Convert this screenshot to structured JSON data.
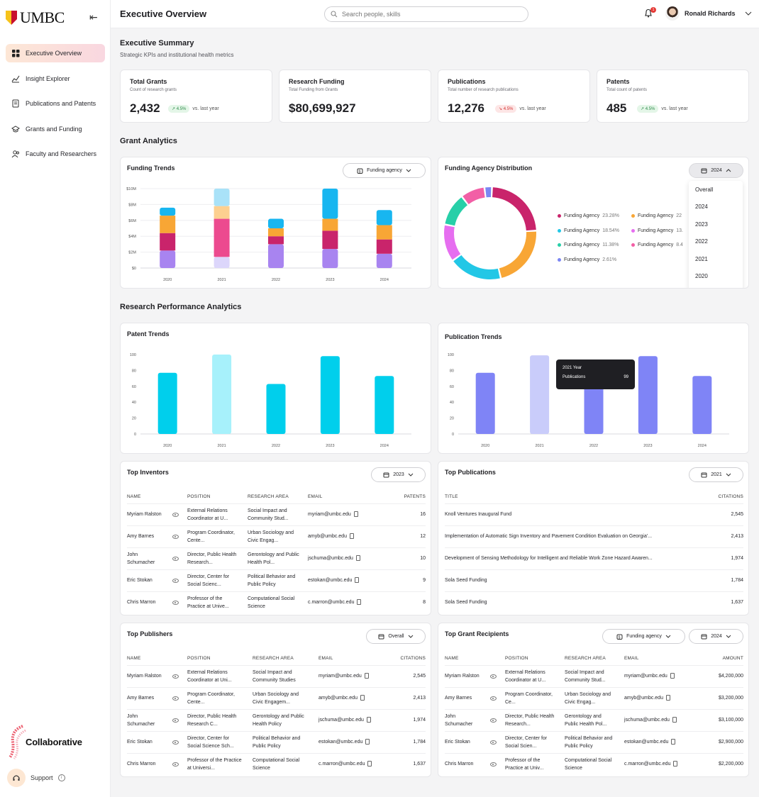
{
  "brand": {
    "logo_text": "UMBC",
    "partner": "Collaborative"
  },
  "sidebar": {
    "items": [
      {
        "label": "Executive Overview",
        "icon": "grid-icon",
        "active": true
      },
      {
        "label": "Insight Explorer",
        "icon": "chart-explore-icon"
      },
      {
        "label": "Publications and Patents",
        "icon": "document-icon"
      },
      {
        "label": "Grants and Funding",
        "icon": "graduation-cap-icon"
      },
      {
        "label": "Faculty and Researchers",
        "icon": "users-icon"
      }
    ],
    "support": "Support"
  },
  "header": {
    "title": "Executive Overview",
    "search_placeholder": "Search people, skills",
    "notifications": "1",
    "user_name": "Ronald Richards"
  },
  "summary": {
    "title": "Executive Summary",
    "subtitle": "Strategic KPIs and institutional health metrics"
  },
  "kpis": [
    {
      "title": "Total Grants",
      "desc": "Count of research grants",
      "value": "2,432",
      "change": "4.5%",
      "dir": "up",
      "suffix": "vs. last year"
    },
    {
      "title": "Research Funding",
      "desc": "Total Funding from Grants",
      "value": "$80,699,927",
      "change": "",
      "dir": "",
      "suffix": ""
    },
    {
      "title": "Publications",
      "desc": "Total number of research publications",
      "value": "12,276",
      "change": "4.5%",
      "dir": "down",
      "suffix": "vs. last year"
    },
    {
      "title": "Patents",
      "desc": "Total count of patents",
      "value": "485",
      "change": "4.5%",
      "dir": "up",
      "suffix": "vs. last year"
    }
  ],
  "grant_analytics": {
    "title": "Grant Analytics"
  },
  "funding_trends": {
    "title": "Funding Trends",
    "filter": "Funding agency"
  },
  "distribution": {
    "title": "Funding Agency Distribution",
    "filter": "2024",
    "menu": [
      "Overall",
      "2024",
      "2023",
      "2022",
      "2021",
      "2020"
    ],
    "legend": [
      {
        "name": "Funding Agency",
        "pct": "23.28%",
        "color": "#c9246b"
      },
      {
        "name": "Funding Agency",
        "pct": "22",
        "color": "#f8a635"
      },
      {
        "name": "Funding Agency",
        "pct": "18.54%",
        "color": "#22c7e6"
      },
      {
        "name": "Funding Agency",
        "pct": "13.",
        "color": "#e66ef0"
      },
      {
        "name": "Funding Agency",
        "pct": "11.38%",
        "color": "#27cfa8"
      },
      {
        "name": "Funding Agency",
        "pct": "8.4",
        "color": "#f25fa6"
      },
      {
        "name": "Funding Agency",
        "pct": "2.61%",
        "color": "#7b86f3"
      }
    ]
  },
  "research_perf": {
    "title": "Research Performance Analytics"
  },
  "patent_trends": {
    "title": "Patent Trends"
  },
  "publication_trends": {
    "title": "Publication Trends",
    "tooltip_year": "2021 Year",
    "tooltip_label": "Publications",
    "tooltip_value": "99"
  },
  "chart_data": [
    {
      "type": "bar",
      "title": "Funding Trends",
      "categories": [
        "2020",
        "2021",
        "2022",
        "2023",
        "2024"
      ],
      "stacked": true,
      "ylim": [
        0,
        10
      ],
      "yticks": [
        "$0",
        "$2M",
        "$4M",
        "$6M",
        "$8M",
        "$10M"
      ],
      "series": [
        {
          "name": "purple",
          "color": "#a884f0",
          "values": [
            2.2,
            1.4,
            3.0,
            2.4,
            1.8
          ]
        },
        {
          "name": "magenta",
          "color": "#c9246b",
          "values": [
            2.2,
            4.8,
            1.0,
            2.3,
            1.8
          ]
        },
        {
          "name": "orange",
          "color": "#f8a635",
          "values": [
            2.2,
            1.6,
            1.0,
            1.5,
            1.8
          ]
        },
        {
          "name": "cyan",
          "color": "#18b6f0",
          "values": [
            1.0,
            2.2,
            1.2,
            3.8,
            1.9
          ]
        }
      ]
    },
    {
      "type": "pie",
      "title": "Funding Agency Distribution",
      "labels": [
        "Funding Agency",
        "Funding Agency",
        "Funding Agency",
        "Funding Agency",
        "Funding Agency",
        "Funding Agency",
        "Funding Agency"
      ],
      "values": [
        23.28,
        22,
        18.54,
        13,
        11.38,
        8.4,
        2.61
      ]
    },
    {
      "type": "bar",
      "title": "Patent Trends",
      "categories": [
        "2020",
        "2021",
        "2022",
        "2023",
        "2024"
      ],
      "values": [
        77,
        100,
        63,
        98,
        73
      ],
      "ylim": [
        0,
        100
      ],
      "yticks": [
        "0",
        "20",
        "40",
        "60",
        "80",
        "100"
      ]
    },
    {
      "type": "bar",
      "title": "Publication Trends",
      "categories": [
        "2020",
        "2021",
        "2022",
        "2023",
        "2024"
      ],
      "values": [
        77,
        99,
        63,
        98,
        73
      ],
      "ylim": [
        0,
        100
      ],
      "yticks": [
        "0",
        "20",
        "40",
        "60",
        "80",
        "100"
      ]
    }
  ],
  "top_inventors": {
    "title": "Top Inventors",
    "filter": "2023",
    "headers": [
      "NAME",
      "POSITION",
      "RESEARCH AREA",
      "EMAIL",
      "PATENTS"
    ],
    "rows": [
      {
        "name": "Myriam Ralston",
        "position": "External Relations Coordinator at U...",
        "area": "Social Impact and Community Stud...",
        "email": "myriam@umbc.edu",
        "value": "16"
      },
      {
        "name": "Amy Barnes",
        "position": "Program Coordinator, Cente...",
        "area": "Urban Sociology and Civic Engag...",
        "email": "amyb@umbc.edu",
        "value": "12"
      },
      {
        "name": "John Schumacher",
        "position": "Director, Public Health Research...",
        "area": "Gerontology and Public Health Pol...",
        "email": "jschuma@umbc.edu",
        "value": "10"
      },
      {
        "name": "Eric Stokan",
        "position": "Director, Center for Social Scienc...",
        "area": "Political Behavior and Public Policy",
        "email": "estokan@umbc.edu",
        "value": "9"
      },
      {
        "name": "Chris Marron",
        "position": "Professor of the Practice at Unive...",
        "area": "Computational Social Science",
        "email": "c.marron@umbc.edu",
        "value": "8"
      }
    ]
  },
  "top_publications": {
    "title": "Top Publications",
    "filter": "2021",
    "headers": [
      "TITLE",
      "CITATIONS"
    ],
    "rows": [
      {
        "title": "Knoll Ventures Inaugural Fund",
        "value": "2,545"
      },
      {
        "title": "Implementation of Automatic Sign Inventory and Pavement Condition Evaluation on Georgia'...",
        "value": "2,413"
      },
      {
        "title": "Development of Sensing Methodology for Intelligent and Reliable Work Zone Hazard Awaren...",
        "value": "1,974"
      },
      {
        "title": "Sola Seed Funding",
        "value": "1,784"
      },
      {
        "title": "Sola Seed Funding",
        "value": "1,637"
      }
    ]
  },
  "top_publishers": {
    "title": "Top Publishers",
    "filter": "Overall",
    "headers": [
      "NAME",
      "POSITION",
      "RESEARCH AREA",
      "EMAIL",
      "CITATIONS"
    ],
    "rows": [
      {
        "name": "Myriam Ralston",
        "position": "External Relations Coordinator at Uni...",
        "area": "Social Impact and Community Studies",
        "email": "myriam@umbc.edu",
        "value": "2,545"
      },
      {
        "name": "Amy Barnes",
        "position": "Program Coordinator, Cente...",
        "area": "Urban Sociology and Civic Engagem...",
        "email": "amyb@umbc.edu",
        "value": "2,413"
      },
      {
        "name": "John Schumacher",
        "position": "Director, Public Health Research C...",
        "area": "Gerontology and Public Health Policy",
        "email": "jschuma@umbc.edu",
        "value": "1,974"
      },
      {
        "name": "Eric Stokan",
        "position": "Director, Center for Social Science Sch...",
        "area": "Political Behavior and Public Policy",
        "email": "estokan@umbc.edu",
        "value": "1,784"
      },
      {
        "name": "Chris Marron",
        "position": "Professor of the Practice at Universi...",
        "area": "Computational Social Science",
        "email": "c.marron@umbc.edu",
        "value": "1,637"
      }
    ]
  },
  "top_recipients": {
    "title": "Top Grant Recipients",
    "filter_agency": "Funding agency",
    "filter_year": "2024",
    "headers": [
      "NAME",
      "POSITION",
      "RESEARCH AREA",
      "EMAIL",
      "AMOUNT"
    ],
    "rows": [
      {
        "name": "Myriam Ralston",
        "position": "External Relations Coordinator at U...",
        "area": "Social Impact and Community Stud...",
        "email": "myriam@umbc.edu",
        "value": "$4,200,000"
      },
      {
        "name": "Amy Barnes",
        "position": "Program Coordinator, Ce...",
        "area": "Urban Sociology and Civic Engag...",
        "email": "amyb@umbc.edu",
        "value": "$3,200,000"
      },
      {
        "name": "John Schumacher",
        "position": "Director, Public Health Research...",
        "area": "Gerontology and Public Health Pol...",
        "email": "jschuma@umbc.edu",
        "value": "$3,100,000"
      },
      {
        "name": "Eric Stokan",
        "position": "Director, Center for Social Scien...",
        "area": "Political Behavior and Public Policy",
        "email": "estokan@umbc.edu",
        "value": "$2,900,000"
      },
      {
        "name": "Chris Marron",
        "position": "Professor of the Practice at Univ...",
        "area": "Computational Social Science",
        "email": "c.marron@umbc.edu",
        "value": "$2,200,000"
      }
    ]
  }
}
